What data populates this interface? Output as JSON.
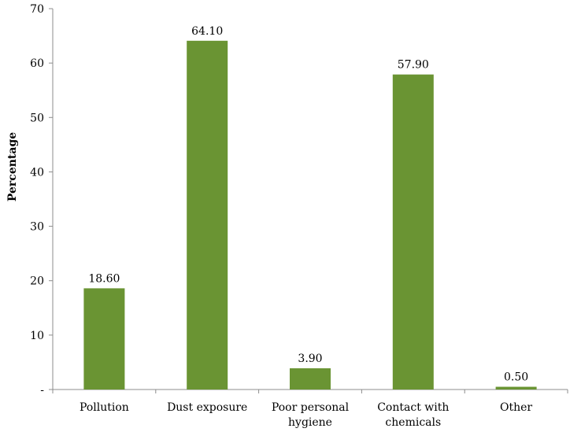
{
  "chart_data": {
    "type": "bar",
    "title": "",
    "xlabel": "",
    "ylabel": "Percentage",
    "ylim": [
      0,
      70
    ],
    "yticks": [
      0,
      10,
      20,
      30,
      40,
      50,
      60,
      70
    ],
    "ytick_labels": [
      "-",
      "10",
      "20",
      "30",
      "40",
      "50",
      "60",
      "70"
    ],
    "grid": false,
    "categories": [
      [
        "Pollution"
      ],
      [
        "Dust exposure"
      ],
      [
        "Poor personal",
        "hygiene"
      ],
      [
        "Contact with",
        "chemicals"
      ],
      [
        "Other"
      ]
    ],
    "values": [
      18.6,
      64.1,
      3.9,
      57.9,
      0.5
    ],
    "data_labels": [
      "18.60",
      "64.10",
      "3.90",
      "57.90",
      "0.50"
    ],
    "bar_color": "#6a9433",
    "axis_color": "#8c8c8c"
  }
}
